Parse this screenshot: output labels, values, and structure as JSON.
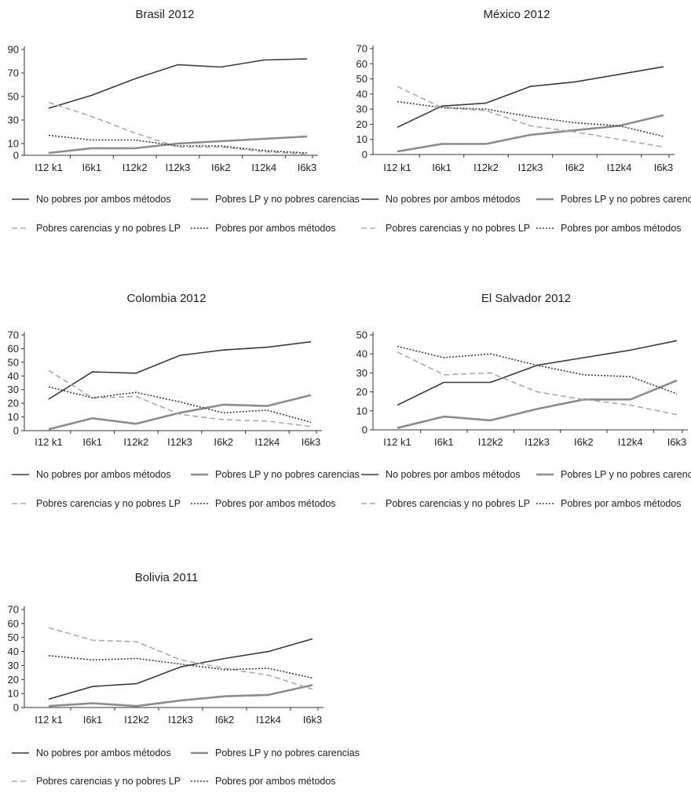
{
  "series_styles": {
    "No pobres por ambos métodos": {
      "color": "#3a3a3a",
      "dash": "solid"
    },
    "Pobres LP y no pobres carencias": {
      "color": "#8c8c8c",
      "dash": "solid-thick"
    },
    "Pobres carencias y no pobres LP": {
      "color": "#aaaaaa",
      "dash": "dashed"
    },
    "Pobres por ambos métodos": {
      "color": "#3a3a3a",
      "dash": "dotted"
    }
  },
  "chart_data": [
    {
      "type": "line",
      "title": "Brasil 2012",
      "categories": [
        "I12 k1",
        "I6k1",
        "I12k2",
        "I12k3",
        "I6k2",
        "I12k4",
        "I6k3"
      ],
      "yticks": [
        0,
        10,
        30,
        50,
        70,
        90
      ],
      "ylim": [
        0,
        90
      ],
      "series": [
        {
          "name": "No pobres por ambos métodos",
          "values": [
            40,
            51,
            65,
            77,
            75,
            81,
            82
          ]
        },
        {
          "name": "Pobres LP y no pobres carencias",
          "values": [
            2,
            6,
            6,
            10,
            12,
            14,
            16
          ]
        },
        {
          "name": "Pobres carencias y no pobres LP",
          "values": [
            45,
            33,
            19,
            7,
            7,
            3,
            1
          ]
        },
        {
          "name": "Pobres por ambos métodos",
          "values": [
            17,
            13,
            13,
            8,
            8,
            4,
            2
          ]
        }
      ]
    },
    {
      "type": "line",
      "title": "México 2012",
      "categories": [
        "I12 k1",
        "I6k1",
        "I12k2",
        "I12k3",
        "I6k2",
        "I12k4",
        "I6k3"
      ],
      "yticks": [
        0,
        10,
        20,
        30,
        40,
        50,
        60,
        70
      ],
      "ylim": [
        0,
        70
      ],
      "series": [
        {
          "name": "No pobres por ambos métodos",
          "values": [
            18,
            32,
            34,
            45,
            48,
            53,
            58
          ]
        },
        {
          "name": "Pobres LP y no pobres carencias",
          "values": [
            2,
            7,
            7,
            13,
            16,
            19,
            26
          ]
        },
        {
          "name": "Pobres carencias y no pobres LP",
          "values": [
            45,
            31,
            29,
            19,
            15,
            10,
            5
          ]
        },
        {
          "name": "Pobres por ambos métodos",
          "values": [
            35,
            31,
            30,
            25,
            21,
            19,
            12
          ]
        }
      ]
    },
    {
      "type": "line",
      "title": "Colombia 2012",
      "categories": [
        "I12 k1",
        "I6k1",
        "I12k2",
        "I12k3",
        "I6k2",
        "I12k4",
        "I6k3"
      ],
      "yticks": [
        0,
        10,
        20,
        30,
        40,
        50,
        60,
        70
      ],
      "ylim": [
        0,
        70
      ],
      "series": [
        {
          "name": "No pobres por ambos métodos",
          "values": [
            23,
            43,
            42,
            55,
            59,
            61,
            65
          ]
        },
        {
          "name": "Pobres LP y no pobres carencias",
          "values": [
            1,
            9,
            5,
            13,
            19,
            18,
            26
          ]
        },
        {
          "name": "Pobres carencias y no pobres LP",
          "values": [
            44,
            24,
            25,
            12,
            8,
            7,
            3
          ]
        },
        {
          "name": "Pobres por ambos métodos",
          "values": [
            32,
            24,
            28,
            21,
            13,
            15,
            6
          ]
        }
      ]
    },
    {
      "type": "line",
      "title": "El Salvador 2012",
      "categories": [
        "I12 k1",
        "I6k1",
        "I12k2",
        "I12k3",
        "I6k2",
        "I12k4",
        "I6k3"
      ],
      "yticks": [
        0,
        10,
        20,
        30,
        40,
        50
      ],
      "ylim": [
        0,
        50
      ],
      "series": [
        {
          "name": "No pobres por ambos métodos",
          "values": [
            13,
            25,
            25,
            34,
            38,
            42,
            47
          ]
        },
        {
          "name": "Pobres LP y no pobres carencias",
          "values": [
            1,
            7,
            5,
            11,
            16,
            16,
            26
          ]
        },
        {
          "name": "Pobres carencias y no pobres LP",
          "values": [
            41,
            29,
            30,
            20,
            16,
            13,
            8
          ]
        },
        {
          "name": "Pobres por ambos métodos",
          "values": [
            44,
            38,
            40,
            34,
            29,
            28,
            19
          ]
        }
      ]
    },
    {
      "type": "line",
      "title": "Bolivia 2011",
      "categories": [
        "I12 k1",
        "I6k1",
        "I12k2",
        "I12k3",
        "I6k2",
        "I12k4",
        "I6k3"
      ],
      "yticks": [
        0,
        10,
        20,
        30,
        40,
        50,
        60,
        70
      ],
      "ylim": [
        0,
        70
      ],
      "series": [
        {
          "name": "No pobres por ambos métodos",
          "values": [
            6,
            15,
            17,
            29,
            35,
            40,
            49
          ]
        },
        {
          "name": "Pobres LP y no pobres carencias",
          "values": [
            1,
            3,
            1,
            5,
            8,
            9,
            16
          ]
        },
        {
          "name": "Pobres carencias y no pobres LP",
          "values": [
            57,
            48,
            47,
            34,
            28,
            23,
            13
          ]
        },
        {
          "name": "Pobres por ambos métodos",
          "values": [
            37,
            34,
            35,
            31,
            27,
            28,
            21
          ]
        }
      ]
    }
  ]
}
